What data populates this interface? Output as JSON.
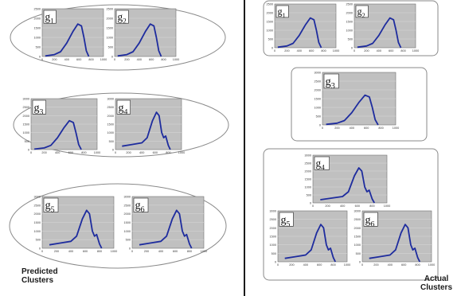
{
  "panels": {
    "predicted": {
      "caption_line1": "Predicted",
      "caption_line2": "Clusters"
    },
    "actual": {
      "caption_line1": "Actual",
      "caption_line2": "Clusters"
    }
  },
  "predicted_clusters": [
    {
      "genes": [
        "g1",
        "g2"
      ]
    },
    {
      "genes": [
        "g3",
        "g4"
      ]
    },
    {
      "genes": [
        "g5",
        "g6"
      ]
    }
  ],
  "actual_clusters": [
    {
      "genes": [
        "g1",
        "g2"
      ]
    },
    {
      "genes": [
        "g3"
      ]
    },
    {
      "genes": [
        "g4",
        "g5",
        "g6"
      ]
    }
  ],
  "charts": {
    "g1": {
      "shape": "A",
      "x_ticks": [
        "0",
        "200",
        "400",
        "600",
        "800",
        "1000"
      ],
      "y_ticks": [
        "0",
        "500",
        "1000",
        "1500",
        "2000",
        "2500"
      ]
    },
    "g2": {
      "shape": "A",
      "x_ticks": [
        "0",
        "200",
        "400",
        "600",
        "800",
        "1000"
      ],
      "y_ticks": [
        "0",
        "500",
        "1000",
        "1500",
        "2000",
        "2500"
      ]
    },
    "g3": {
      "shape": "A",
      "x_ticks": [
        "0",
        "200",
        "400",
        "600",
        "800",
        "1000"
      ],
      "y_ticks": [
        "0",
        "500",
        "1000",
        "1500",
        "2000",
        "2500",
        "3000"
      ]
    },
    "g4": {
      "shape": "B",
      "x_ticks": [
        "0",
        "200",
        "400",
        "600",
        "800",
        "1000"
      ],
      "y_ticks": [
        "0",
        "500",
        "1000",
        "1500",
        "2000",
        "2500",
        "3000"
      ]
    },
    "g5": {
      "shape": "B",
      "x_ticks": [
        "0",
        "200",
        "400",
        "600",
        "800",
        "1000"
      ],
      "y_ticks": [
        "0",
        "500",
        "1000",
        "1500",
        "2000",
        "2500",
        "3000"
      ]
    },
    "g6": {
      "shape": "B",
      "x_ticks": [
        "0",
        "200",
        "400",
        "600",
        "800",
        "1000"
      ],
      "y_ticks": [
        "0",
        "500",
        "1000",
        "1500",
        "2000",
        "2500",
        "3000"
      ]
    }
  },
  "curves": {
    "A": [
      [
        50,
        30
      ],
      [
        200,
        100
      ],
      [
        300,
        250
      ],
      [
        400,
        700
      ],
      [
        500,
        1300
      ],
      [
        580,
        1700
      ],
      [
        640,
        1600
      ],
      [
        680,
        1000
      ],
      [
        720,
        300
      ],
      [
        760,
        0
      ]
    ],
    "B": [
      [
        100,
        200
      ],
      [
        250,
        300
      ],
      [
        400,
        400
      ],
      [
        480,
        700
      ],
      [
        560,
        1700
      ],
      [
        620,
        2200
      ],
      [
        660,
        2000
      ],
      [
        700,
        1000
      ],
      [
        730,
        700
      ],
      [
        760,
        800
      ],
      [
        800,
        250
      ],
      [
        830,
        0
      ]
    ]
  },
  "style": {
    "curve_color": "#1e2c9e",
    "plot_bg": "#c0c0c0",
    "grid_color": "#d9d9d9",
    "frame_color": "#707070"
  }
}
